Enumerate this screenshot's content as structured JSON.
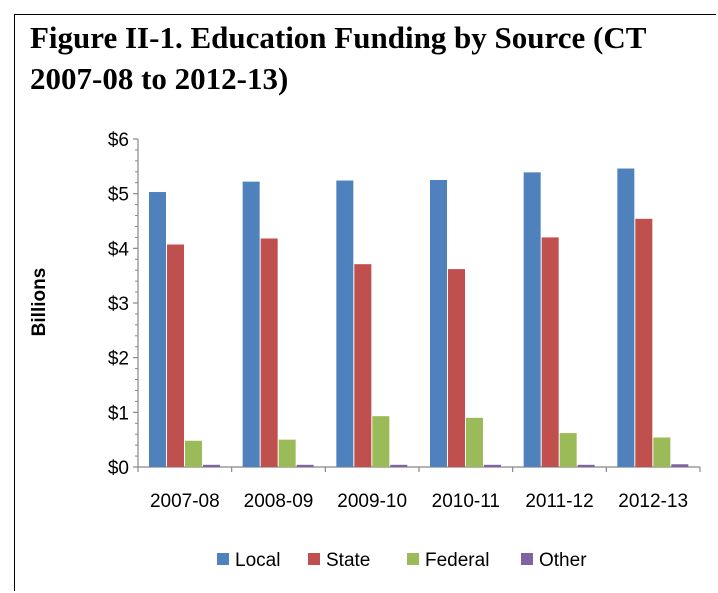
{
  "chart_data": {
    "type": "bar",
    "title": "Figure II-1.  Education Funding by Source (CT 2007-08 to 2012-13)",
    "xlabel": "",
    "ylabel": "Billions",
    "categories": [
      "2007-08",
      "2008-09",
      "2009-10",
      "2010-11",
      "2011-12",
      "2012-13"
    ],
    "series": [
      {
        "name": "Local",
        "color": "#4f81bd",
        "values": [
          5.03,
          5.22,
          5.24,
          5.25,
          5.39,
          5.46
        ]
      },
      {
        "name": "State",
        "color": "#c0504d",
        "values": [
          4.07,
          4.18,
          3.71,
          3.62,
          4.2,
          4.54
        ]
      },
      {
        "name": "Federal",
        "color": "#9bbb59",
        "values": [
          0.48,
          0.5,
          0.93,
          0.9,
          0.62,
          0.54
        ]
      },
      {
        "name": "Other",
        "color": "#8064a2",
        "values": [
          0.04,
          0.04,
          0.04,
          0.04,
          0.04,
          0.05
        ]
      }
    ],
    "ylim": [
      0,
      6
    ],
    "yticks": [
      0,
      1,
      2,
      3,
      4,
      5,
      6
    ],
    "ytick_labels": [
      "$0",
      "$1",
      "$2",
      "$3",
      "$4",
      "$5",
      "$6"
    ],
    "legend_position": "bottom",
    "grid": false
  }
}
